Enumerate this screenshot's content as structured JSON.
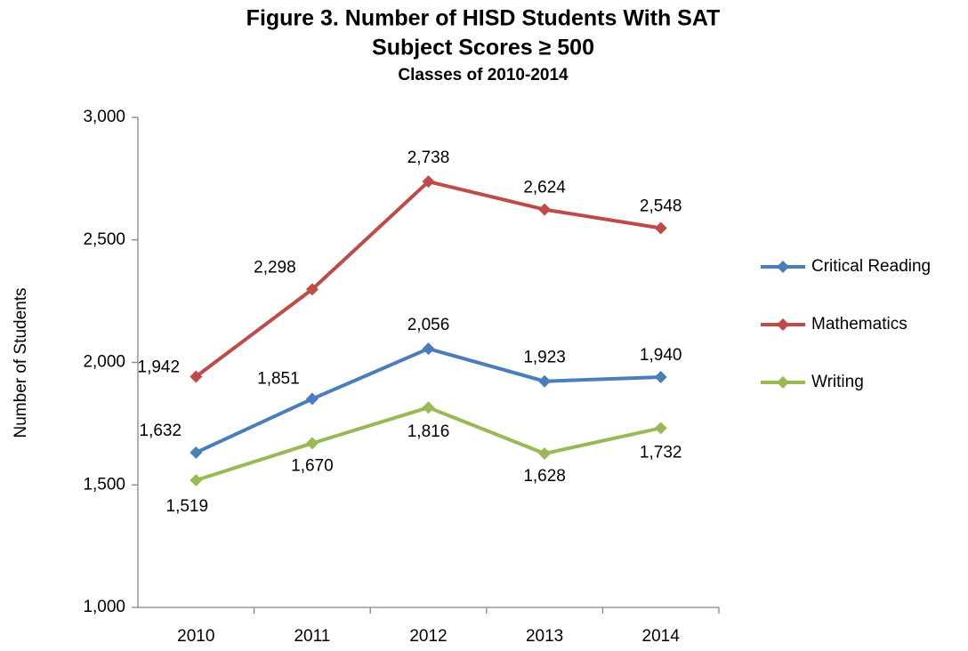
{
  "chart_data": {
    "type": "line",
    "title": [
      "Figure 3. Number of HISD Students With SAT",
      "Subject Scores ≥ 500"
    ],
    "subtitle": "Classes of 2010-2014",
    "ylabel": "Number of Students",
    "categories": [
      "2010",
      "2011",
      "2012",
      "2013",
      "2014"
    ],
    "series": [
      {
        "name": "Critical Reading",
        "color": "#4a7ebb",
        "values": [
          1632,
          1851,
          2056,
          1923,
          1940
        ],
        "value_labels": [
          "1,632",
          "1,851",
          "2,056",
          "1,923",
          "1,940"
        ]
      },
      {
        "name": "Mathematics",
        "color": "#be4b48",
        "values": [
          1942,
          2298,
          2738,
          2624,
          2548
        ],
        "value_labels": [
          "1,942",
          "2,298",
          "2,738",
          "2,624",
          "2,548"
        ]
      },
      {
        "name": "Writing",
        "color": "#98b954",
        "values": [
          1519,
          1670,
          1816,
          1628,
          1732
        ],
        "value_labels": [
          "1,519",
          "1,670",
          "1,816",
          "1,628",
          "1,732"
        ]
      }
    ],
    "ylim": [
      1000,
      3000
    ],
    "yticks": [
      {
        "value": 1000,
        "label": "1,000"
      },
      {
        "value": 1500,
        "label": "1,500"
      },
      {
        "value": 2000,
        "label": "2,000"
      },
      {
        "value": 2500,
        "label": "2,500"
      },
      {
        "value": 3000,
        "label": "3,000"
      }
    ],
    "grid": false,
    "legend": "right"
  }
}
